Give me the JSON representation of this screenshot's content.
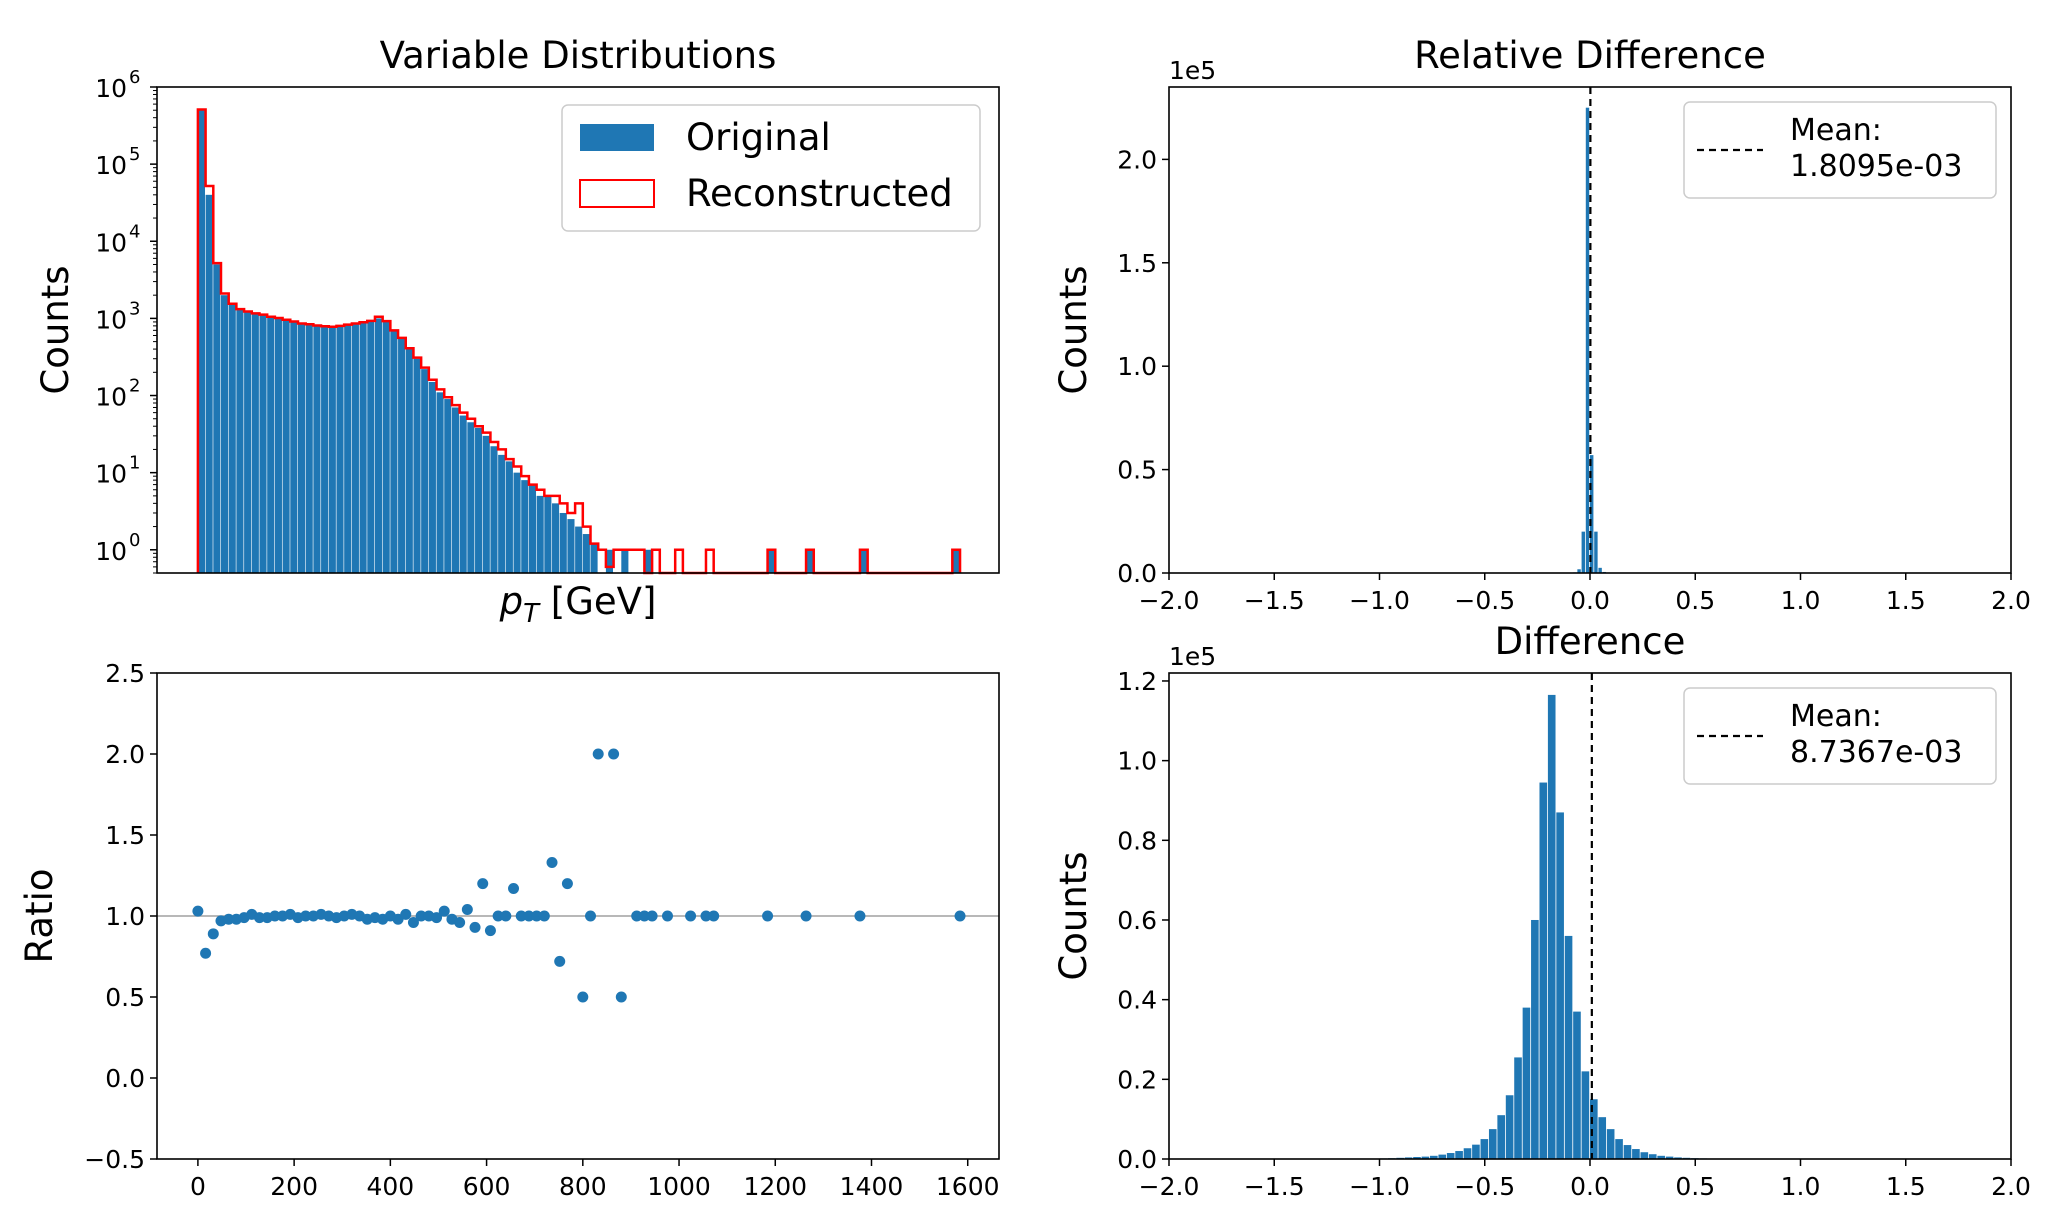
{
  "colors": {
    "bar": "#1f77b4",
    "recon": "#ff0000",
    "grid": "#a0a0a0"
  },
  "chart_data": [
    {
      "id": "dist",
      "type": "bar",
      "title": "Variable Distributions",
      "xlabel_var": "p",
      "xlabel_sub": "T",
      "xlabel_unit": " [GeV]",
      "ylabel": "Counts",
      "yscale": "log",
      "ylim": [
        0.5,
        1000000
      ],
      "xlim": [
        -85,
        1665
      ],
      "bin_width": 16,
      "bin_start": 0,
      "yticks": [
        {
          "base": "10",
          "exp": "0",
          "v": 1
        },
        {
          "base": "10",
          "exp": "1",
          "v": 10
        },
        {
          "base": "10",
          "exp": "2",
          "v": 100
        },
        {
          "base": "10",
          "exp": "3",
          "v": 1000
        },
        {
          "base": "10",
          "exp": "4",
          "v": 10000
        },
        {
          "base": "10",
          "exp": "5",
          "v": 100000
        },
        {
          "base": "10",
          "exp": "6",
          "v": 1000000
        }
      ],
      "legend": {
        "position": "top-right",
        "entries": [
          "Original",
          "Reconstructed"
        ]
      },
      "series": [
        {
          "name": "Original",
          "values": [
            520000,
            40000,
            5000,
            2000,
            1500,
            1300,
            1200,
            1150,
            1100,
            1050,
            1000,
            950,
            900,
            850,
            850,
            800,
            800,
            780,
            800,
            820,
            850,
            880,
            920,
            1000,
            900,
            700,
            550,
            400,
            300,
            220,
            150,
            110,
            90,
            70,
            55,
            45,
            38,
            30,
            22,
            17,
            14,
            10,
            8,
            7,
            5,
            5,
            4,
            3,
            2.5,
            2,
            1.6,
            1.2,
            0,
            1,
            0,
            1,
            0,
            0,
            1,
            0,
            0,
            0,
            0,
            0,
            0,
            0,
            0,
            0,
            0,
            0,
            0,
            0,
            0,
            0,
            1,
            0,
            0,
            0,
            0,
            1,
            0,
            0,
            0,
            0,
            0,
            0,
            1,
            0,
            0,
            0,
            0,
            0,
            0,
            0,
            0,
            0,
            0,
            0,
            1
          ]
        },
        {
          "name": "Reconstructed",
          "values": [
            510000,
            52000,
            5200,
            2100,
            1550,
            1320,
            1230,
            1160,
            1120,
            1050,
            1010,
            960,
            910,
            860,
            840,
            810,
            790,
            780,
            800,
            830,
            860,
            890,
            930,
            1050,
            920,
            700,
            560,
            410,
            310,
            230,
            160,
            120,
            95,
            75,
            60,
            50,
            40,
            33,
            25,
            20,
            15,
            12,
            9,
            7,
            6,
            5,
            5,
            4,
            3,
            4,
            2,
            1.2,
            1,
            0.6,
            1,
            1,
            1,
            1,
            0,
            1,
            0,
            0,
            1,
            0,
            0,
            0,
            1,
            0,
            0,
            0,
            0,
            0,
            0,
            0,
            1,
            0,
            0,
            0,
            0,
            1,
            0,
            0,
            0,
            0,
            0,
            0,
            1,
            0,
            0,
            0,
            0,
            0,
            0,
            0,
            0,
            0,
            0,
            0,
            1
          ]
        }
      ]
    },
    {
      "id": "ratio",
      "type": "scatter",
      "ylabel": "Ratio",
      "xlim": [
        -85,
        1665
      ],
      "ylim": [
        -0.5,
        2.5
      ],
      "xticks": [
        0,
        200,
        400,
        600,
        800,
        1000,
        1200,
        1400,
        1600
      ],
      "yticks": [
        -0.5,
        0.0,
        0.5,
        1.0,
        1.5,
        2.0,
        2.5
      ],
      "ytick_labels": [
        "−0.5",
        "0.0",
        "0.5",
        "1.0",
        "1.5",
        "2.0",
        "2.5"
      ],
      "xtick_labels": [
        "0",
        "200",
        "400",
        "600",
        "800",
        "1000",
        "1200",
        "1400",
        "1600"
      ],
      "reference_line": 1.0,
      "points": {
        "x": [
          0,
          16,
          32,
          48,
          64,
          80,
          96,
          112,
          128,
          144,
          160,
          176,
          192,
          208,
          224,
          240,
          256,
          272,
          288,
          304,
          320,
          336,
          352,
          368,
          384,
          400,
          416,
          432,
          448,
          464,
          480,
          496,
          512,
          528,
          544,
          560,
          576,
          592,
          608,
          624,
          640,
          656,
          672,
          688,
          704,
          720,
          736,
          752,
          768,
          800,
          816,
          832,
          864,
          880,
          912,
          928,
          944,
          976,
          1024,
          1056,
          1072,
          1184,
          1264,
          1376,
          1584
        ],
        "y": [
          1.03,
          0.77,
          0.89,
          0.97,
          0.98,
          0.98,
          0.99,
          1.01,
          0.99,
          0.99,
          1.0,
          1.0,
          1.01,
          0.99,
          1.0,
          1.0,
          1.01,
          1.0,
          0.99,
          1.0,
          1.01,
          1.0,
          0.98,
          0.99,
          0.98,
          1.0,
          0.98,
          1.01,
          0.96,
          1.0,
          1.0,
          0.99,
          1.03,
          0.98,
          0.96,
          1.04,
          0.93,
          1.2,
          0.91,
          1.0,
          1.0,
          1.17,
          1.0,
          1.0,
          1.0,
          1.0,
          1.33,
          0.72,
          1.2,
          0.5,
          1.0,
          2.0,
          2.0,
          0.5,
          1.0,
          1.0,
          1.0,
          1.0,
          1.0,
          1.0,
          1.0,
          1.0,
          1.0,
          1.0,
          1.0
        ]
      }
    },
    {
      "id": "reldiff",
      "type": "bar",
      "title": "Relative Difference",
      "ylabel": "Counts",
      "offset_label": "1e5",
      "xlim": [
        -2.0,
        2.0
      ],
      "ylim": [
        0,
        2.35
      ],
      "xticks": [
        -2.0,
        -1.5,
        -1.0,
        -0.5,
        0.0,
        0.5,
        1.0,
        1.5,
        2.0
      ],
      "xtick_labels": [
        "−2.0",
        "−1.5",
        "−1.0",
        "−0.5",
        "0.0",
        "0.5",
        "1.0",
        "1.5",
        "2.0"
      ],
      "yticks": [
        0.0,
        0.5,
        1.0,
        1.5,
        2.0
      ],
      "ytick_labels": [
        "0.0",
        "0.5",
        "1.0",
        "1.5",
        "2.0"
      ],
      "bin_width": 0.02,
      "bins_start": -0.1,
      "values": [
        0.0005,
        0.003,
        0.018,
        0.2,
        2.25,
        0.57,
        0.2,
        0.025,
        0.005,
        0.001
      ],
      "mean_line": 0.0018095,
      "legend": {
        "position": "top-right",
        "label": "Mean:",
        "value": "1.8095e-03"
      }
    },
    {
      "id": "diff",
      "type": "bar",
      "title": "Difference",
      "ylabel": "Counts",
      "offset_label": "1e5",
      "xlim": [
        -2.0,
        2.0
      ],
      "ylim": [
        0,
        1.22
      ],
      "xticks": [
        -2.0,
        -1.5,
        -1.0,
        -0.5,
        0.0,
        0.5,
        1.0,
        1.5,
        2.0
      ],
      "xtick_labels": [
        "−2.0",
        "−1.5",
        "−1.0",
        "−0.5",
        "0.0",
        "0.5",
        "1.0",
        "1.5",
        "2.0"
      ],
      "yticks": [
        0.0,
        0.2,
        0.4,
        0.6,
        0.8,
        1.0,
        1.2
      ],
      "ytick_labels": [
        "0.0",
        "0.2",
        "0.4",
        "0.6",
        "0.8",
        "1.0",
        "1.2"
      ],
      "bin_width": 0.04,
      "bins_start": -1.2,
      "values": [
        0.0002,
        0.0003,
        0.0005,
        0.0007,
        0.001,
        0.0015,
        0.002,
        0.003,
        0.004,
        0.005,
        0.006,
        0.008,
        0.011,
        0.015,
        0.02,
        0.027,
        0.036,
        0.05,
        0.075,
        0.11,
        0.16,
        0.255,
        0.38,
        0.6,
        0.945,
        1.165,
        0.87,
        0.56,
        0.37,
        0.22,
        0.15,
        0.105,
        0.075,
        0.05,
        0.035,
        0.025,
        0.017,
        0.012,
        0.008,
        0.006,
        0.004,
        0.003,
        0.002,
        0.0015,
        0.001,
        0.0008,
        0.0005,
        0.0003
      ],
      "mean_line": 0.0087367,
      "legend": {
        "position": "top-right",
        "label": "Mean:",
        "value": "8.7367e-03"
      }
    }
  ]
}
